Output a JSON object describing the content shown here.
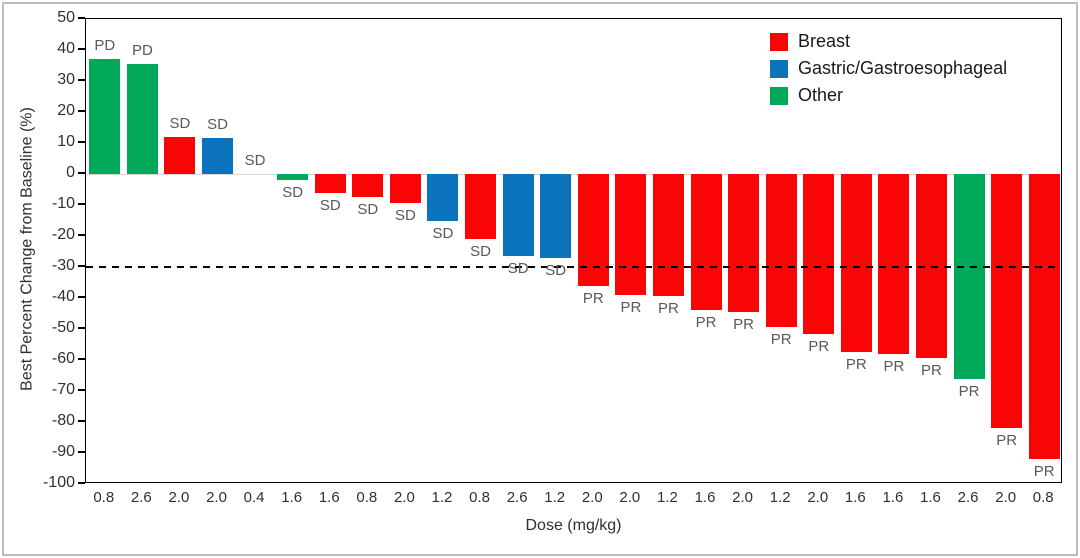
{
  "chart_data": {
    "type": "bar",
    "subtype": "waterfall",
    "title": "",
    "xlabel": "Dose (mg/kg)",
    "ylabel": "Best Percent Change from Baseline (%)",
    "ylim": [
      -100,
      50
    ],
    "ytick_step": 10,
    "yticks": [
      50,
      40,
      30,
      20,
      10,
      0,
      -10,
      -20,
      -30,
      -40,
      -50,
      -60,
      -70,
      -80,
      -90,
      -100
    ],
    "grid": "off",
    "zero_line_color": "#d9d9d9",
    "reference_line": {
      "y": -30,
      "style": "dashed",
      "color": "#000000"
    },
    "legend": {
      "position": "top-right",
      "entries": [
        {
          "label": "Breast",
          "color": "#fa0505"
        },
        {
          "label": "Gastric/Gastroesophageal",
          "color": "#0b72bc"
        },
        {
          "label": "Other",
          "color": "#00a859"
        }
      ]
    },
    "categories": [
      "0.8",
      "2.6",
      "2.0",
      "2.0",
      "0.4",
      "1.6",
      "1.6",
      "0.8",
      "2.0",
      "1.2",
      "0.8",
      "2.6",
      "1.2",
      "2.0",
      "2.0",
      "1.2",
      "1.6",
      "2.0",
      "1.2",
      "2.0",
      "1.6",
      "1.6",
      "1.6",
      "2.6",
      "2.0",
      "0.8"
    ],
    "bars": [
      {
        "dose": "0.8",
        "value": 37,
        "category": "Other",
        "response": "PD"
      },
      {
        "dose": "2.6",
        "value": 35.5,
        "category": "Other",
        "response": "PD"
      },
      {
        "dose": "2.0",
        "value": 12,
        "category": "Breast",
        "response": "SD"
      },
      {
        "dose": "2.0",
        "value": 11.5,
        "category": "Gastric/Gastroesophageal",
        "response": "SD"
      },
      {
        "dose": "0.4",
        "value": 0,
        "category": "",
        "response": "SD"
      },
      {
        "dose": "1.6",
        "value": -2,
        "category": "Other",
        "response": "SD"
      },
      {
        "dose": "1.6",
        "value": -6,
        "category": "Breast",
        "response": "SD"
      },
      {
        "dose": "0.8",
        "value": -7.5,
        "category": "Breast",
        "response": "SD"
      },
      {
        "dose": "2.0",
        "value": -9.5,
        "category": "Breast",
        "response": "SD"
      },
      {
        "dose": "1.2",
        "value": -15,
        "category": "Gastric/Gastroesophageal",
        "response": "SD"
      },
      {
        "dose": "0.8",
        "value": -21,
        "category": "Breast",
        "response": "SD"
      },
      {
        "dose": "2.6",
        "value": -26.5,
        "category": "Gastric/Gastroesophageal",
        "response": "SD"
      },
      {
        "dose": "1.2",
        "value": -27,
        "category": "Gastric/Gastroesophageal",
        "response": "SD"
      },
      {
        "dose": "2.0",
        "value": -36,
        "category": "Breast",
        "response": "PR"
      },
      {
        "dose": "2.0",
        "value": -39,
        "category": "Breast",
        "response": "PR"
      },
      {
        "dose": "1.2",
        "value": -39.5,
        "category": "Breast",
        "response": "PR"
      },
      {
        "dose": "1.6",
        "value": -44,
        "category": "Breast",
        "response": "PR"
      },
      {
        "dose": "2.0",
        "value": -44.5,
        "category": "Breast",
        "response": "PR"
      },
      {
        "dose": "1.2",
        "value": -49.5,
        "category": "Breast",
        "response": "PR"
      },
      {
        "dose": "2.0",
        "value": -51.5,
        "category": "Breast",
        "response": "PR"
      },
      {
        "dose": "1.6",
        "value": -57.5,
        "category": "Breast",
        "response": "PR"
      },
      {
        "dose": "1.6",
        "value": -58,
        "category": "Breast",
        "response": "PR"
      },
      {
        "dose": "1.6",
        "value": -59.5,
        "category": "Breast",
        "response": "PR"
      },
      {
        "dose": "2.6",
        "value": -66,
        "category": "Other",
        "response": "PR"
      },
      {
        "dose": "2.0",
        "value": -82,
        "category": "Breast",
        "response": "PR"
      },
      {
        "dose": "0.8",
        "value": -92,
        "category": "Breast",
        "response": "PR"
      }
    ]
  },
  "style_colors": {
    "axis_text": "#303030",
    "response_label_text": "#595959",
    "plot_border": "#000000",
    "figure_border": "#bcbcbc"
  }
}
